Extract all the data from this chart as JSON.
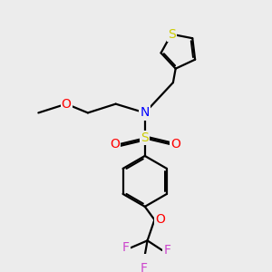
{
  "bg_color": "#ececec",
  "bond_color": "#000000",
  "S_color": "#cccc00",
  "N_color": "#0000ff",
  "O_color": "#ff0000",
  "F_color": "#cc44cc",
  "lw": 1.6,
  "figsize": [
    3.0,
    3.0
  ],
  "dpi": 100,
  "xlim": [
    0,
    10
  ],
  "ylim": [
    0,
    10
  ],
  "font_size": 9
}
